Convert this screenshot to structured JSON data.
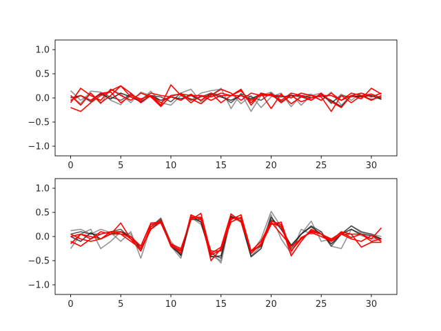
{
  "chart_data": [
    {
      "type": "line",
      "title": "",
      "xlabel": "",
      "ylabel": "",
      "xlim": [
        -1.55,
        32.55
      ],
      "ylim": [
        -1.2,
        1.2
      ],
      "xticks": [
        0,
        5,
        10,
        15,
        20,
        25,
        30
      ],
      "yticks": [
        -1.0,
        -0.5,
        0.0,
        0.5,
        1.0
      ],
      "ytick_labels": [
        "−1.0",
        "−0.5",
        "0.0",
        "0.5",
        "1.0"
      ],
      "grid": false,
      "x": [
        0,
        1,
        2,
        3,
        4,
        5,
        6,
        7,
        8,
        9,
        10,
        11,
        12,
        13,
        14,
        15,
        16,
        17,
        18,
        19,
        20,
        21,
        22,
        23,
        24,
        25,
        26,
        27,
        28,
        29,
        30,
        31
      ],
      "series": [
        {
          "color": "#808080",
          "values": [
            0.15,
            -0.05,
            0.1,
            -0.12,
            0.18,
            0.08,
            -0.1,
            0.12,
            0.05,
            -0.15,
            0.02,
            0.1,
            0.18,
            -0.08,
            0.05,
            0.2,
            -0.22,
            0.1,
            -0.28,
            0.05,
            0.12,
            -0.05,
            0.08,
            -0.15,
            0.05,
            0.1,
            -0.12,
            0.08,
            -0.05,
            0.1,
            0.04,
            -0.02
          ]
        },
        {
          "color": "#808080",
          "values": [
            0.05,
            -0.12,
            0.14,
            0.12,
            -0.05,
            -0.14,
            0.1,
            -0.05,
            0.14,
            -0.1,
            -0.15,
            0.05,
            -0.05,
            0.1,
            0.15,
            0.18,
            0.1,
            -0.12,
            0.05,
            -0.2,
            0.02,
            0.1,
            -0.18,
            0.05,
            0.08,
            -0.05,
            0.12,
            -0.15,
            0.05,
            0.02,
            0.08,
            0.0
          ]
        },
        {
          "color": "#404040",
          "values": [
            -0.05,
            0.05,
            -0.08,
            0.1,
            0.02,
            -0.05,
            0.08,
            -0.1,
            0.05,
            0.02,
            -0.08,
            0.1,
            -0.05,
            0.02,
            0.1,
            0.05,
            -0.1,
            0.08,
            0.02,
            -0.05,
            0.1,
            -0.08,
            0.05,
            0.02,
            -0.05,
            0.08,
            -0.1,
            0.05,
            0.02,
            0.05,
            -0.03,
            0.02
          ]
        },
        {
          "color": "#1a1a1a",
          "values": [
            0.0,
            0.05,
            -0.05,
            0.08,
            -0.02,
            0.1,
            0.02,
            -0.08,
            0.05,
            -0.05,
            0.02,
            -0.02,
            0.05,
            -0.05,
            0.08,
            0.02,
            -0.05,
            0.05,
            -0.02,
            0.08,
            0.05,
            0.02,
            0.05,
            0.05,
            0.0,
            0.05,
            -0.05,
            -0.18,
            0.05,
            0.02,
            0.05,
            -0.03
          ]
        },
        {
          "color": "#ff0000",
          "values": [
            -0.2,
            -0.28,
            -0.1,
            0.05,
            0.15,
            0.25,
            0.1,
            -0.1,
            0.05,
            -0.15,
            0.27,
            0.05,
            -0.02,
            -0.12,
            0.05,
            0.18,
            0.1,
            -0.05,
            0.1,
            0.05,
            0.08,
            -0.1,
            0.05,
            -0.08,
            0.0,
            0.05,
            0.05,
            -0.05,
            0.05,
            0.1,
            0.02,
            0.1
          ]
        },
        {
          "color": "#ff0000",
          "values": [
            -0.1,
            0.2,
            0.05,
            -0.05,
            0.18,
            0.05,
            -0.05,
            0.1,
            0.02,
            -0.18,
            0.05,
            0.08,
            -0.1,
            0.05,
            0.02,
            0.1,
            0.05,
            0.15,
            -0.1,
            0.1,
            0.05,
            -0.05,
            0.1,
            0.05,
            -0.05,
            0.1,
            -0.08,
            -0.2,
            0.05,
            -0.02,
            0.2,
            0.08
          ]
        },
        {
          "color": "#ff0000",
          "values": [
            0.05,
            -0.15,
            0.1,
            -0.1,
            0.05,
            0.25,
            0.02,
            -0.05,
            0.1,
            0.05,
            0.02,
            -0.05,
            0.08,
            -0.05,
            0.1,
            -0.1,
            0.05,
            0.18,
            -0.15,
            0.1,
            -0.22,
            0.08,
            -0.12,
            0.02,
            0.05,
            -0.05,
            0.1,
            -0.05,
            0.1,
            0.05,
            -0.05,
            0.05
          ]
        },
        {
          "color": "#ff0000",
          "values": [
            -0.05,
            0.05,
            -0.05,
            0.1,
            0.12,
            -0.1,
            0.05,
            -0.02,
            0.05,
            -0.1,
            0.05,
            0.08,
            0.05,
            0.05,
            -0.05,
            0.05,
            0.05,
            0.05,
            -0.05,
            0.05,
            0.05,
            0.05,
            0.0,
            0.1,
            0.05,
            0.02,
            -0.28,
            0.05,
            -0.1,
            0.05,
            0.08,
            0.0
          ]
        }
      ]
    },
    {
      "type": "line",
      "title": "",
      "xlabel": "",
      "ylabel": "",
      "xlim": [
        -1.55,
        32.55
      ],
      "ylim": [
        -1.2,
        1.2
      ],
      "xticks": [
        0,
        5,
        10,
        15,
        20,
        25,
        30
      ],
      "yticks": [
        -1.0,
        -0.5,
        0.0,
        0.5,
        1.0
      ],
      "ytick_labels": [
        "−1.0",
        "−0.5",
        "0.0",
        "0.5",
        "1.0"
      ],
      "grid": false,
      "x": [
        0,
        1,
        2,
        3,
        4,
        5,
        6,
        7,
        8,
        9,
        10,
        11,
        12,
        13,
        14,
        15,
        16,
        17,
        18,
        19,
        20,
        21,
        22,
        23,
        24,
        25,
        26,
        27,
        28,
        29,
        30,
        31
      ],
      "series": [
        {
          "color": "#808080",
          "values": [
            0.12,
            0.15,
            0.05,
            0.15,
            0.08,
            -0.1,
            0.1,
            -0.45,
            0.2,
            0.3,
            -0.2,
            -0.45,
            0.4,
            0.3,
            -0.4,
            -0.5,
            0.45,
            0.35,
            -0.35,
            -0.05,
            0.52,
            0.2,
            -0.2,
            0.05,
            0.32,
            -0.1,
            -0.05,
            0.05,
            0.22,
            0.08,
            0.05,
            0.0
          ]
        },
        {
          "color": "#808080",
          "values": [
            -0.25,
            0.05,
            0.15,
            -0.25,
            -0.1,
            0.1,
            0.05,
            -0.3,
            0.15,
            0.35,
            -0.1,
            -0.35,
            0.4,
            0.25,
            -0.3,
            -0.55,
            0.4,
            0.3,
            -0.4,
            -0.2,
            0.45,
            -0.05,
            -0.35,
            0.15,
            0.05,
            0.1,
            -0.2,
            -0.25,
            0.15,
            0.02,
            -0.05,
            -0.05
          ]
        },
        {
          "color": "#404040",
          "values": [
            0.05,
            0.1,
            0.05,
            0.05,
            0.1,
            0.15,
            -0.05,
            -0.3,
            0.2,
            0.38,
            -0.15,
            -0.4,
            0.35,
            0.35,
            -0.35,
            -0.45,
            0.4,
            0.38,
            -0.3,
            -0.2,
            0.35,
            0.2,
            -0.25,
            0.05,
            0.22,
            0.1,
            -0.2,
            0.05,
            0.22,
            0.1,
            0.05,
            -0.05
          ]
        },
        {
          "color": "#1a1a1a",
          "values": [
            0.0,
            -0.1,
            0.08,
            -0.05,
            0.05,
            0.1,
            0.0,
            -0.25,
            0.15,
            0.32,
            -0.2,
            -0.38,
            0.42,
            0.3,
            -0.42,
            -0.4,
            0.42,
            0.32,
            -0.42,
            -0.25,
            0.4,
            0.15,
            -0.18,
            0.05,
            0.2,
            0.05,
            -0.15,
            0.05,
            0.15,
            0.05,
            0.02,
            -0.05
          ]
        },
        {
          "color": "#ff0000",
          "values": [
            -0.1,
            -0.2,
            -0.05,
            0.05,
            0.1,
            0.05,
            0.0,
            -0.2,
            0.28,
            0.3,
            -0.15,
            -0.25,
            0.35,
            0.48,
            -0.35,
            -0.22,
            0.47,
            0.3,
            -0.3,
            -0.1,
            0.32,
            0.25,
            -0.4,
            -0.1,
            0.15,
            0.05,
            -0.05,
            0.08,
            -0.02,
            0.05,
            -0.05,
            0.18
          ]
        },
        {
          "color": "#ff0000",
          "values": [
            0.05,
            -0.05,
            -0.1,
            -0.05,
            0.05,
            0.28,
            -0.05,
            -0.3,
            0.2,
            0.35,
            -0.2,
            -0.3,
            0.4,
            0.4,
            -0.5,
            -0.25,
            0.3,
            0.4,
            -0.3,
            -0.18,
            0.25,
            0.3,
            -0.3,
            -0.05,
            0.12,
            0.05,
            -0.1,
            0.05,
            -0.05,
            -0.1,
            0.02,
            -0.1
          ]
        },
        {
          "color": "#ff0000",
          "values": [
            -0.15,
            0.05,
            -0.05,
            0.1,
            0.05,
            0.05,
            -0.1,
            -0.25,
            0.15,
            0.3,
            -0.15,
            -0.35,
            0.45,
            0.35,
            -0.3,
            -0.3,
            0.35,
            0.45,
            -0.3,
            -0.1,
            0.3,
            0.05,
            -0.2,
            -0.05,
            0.1,
            0.05,
            -0.08,
            0.1,
            0.05,
            0.05,
            -0.1,
            -0.05
          ]
        },
        {
          "color": "#ff0000",
          "values": [
            0.0,
            0.05,
            0.0,
            -0.05,
            0.1,
            0.1,
            -0.05,
            -0.2,
            0.25,
            0.28,
            -0.18,
            -0.28,
            0.38,
            0.38,
            -0.38,
            -0.28,
            0.38,
            0.38,
            -0.35,
            -0.15,
            0.28,
            0.2,
            -0.3,
            -0.02,
            0.08,
            0.0,
            -0.1,
            0.05,
            0.05,
            -0.22,
            -0.12,
            -0.12
          ]
        }
      ]
    }
  ]
}
